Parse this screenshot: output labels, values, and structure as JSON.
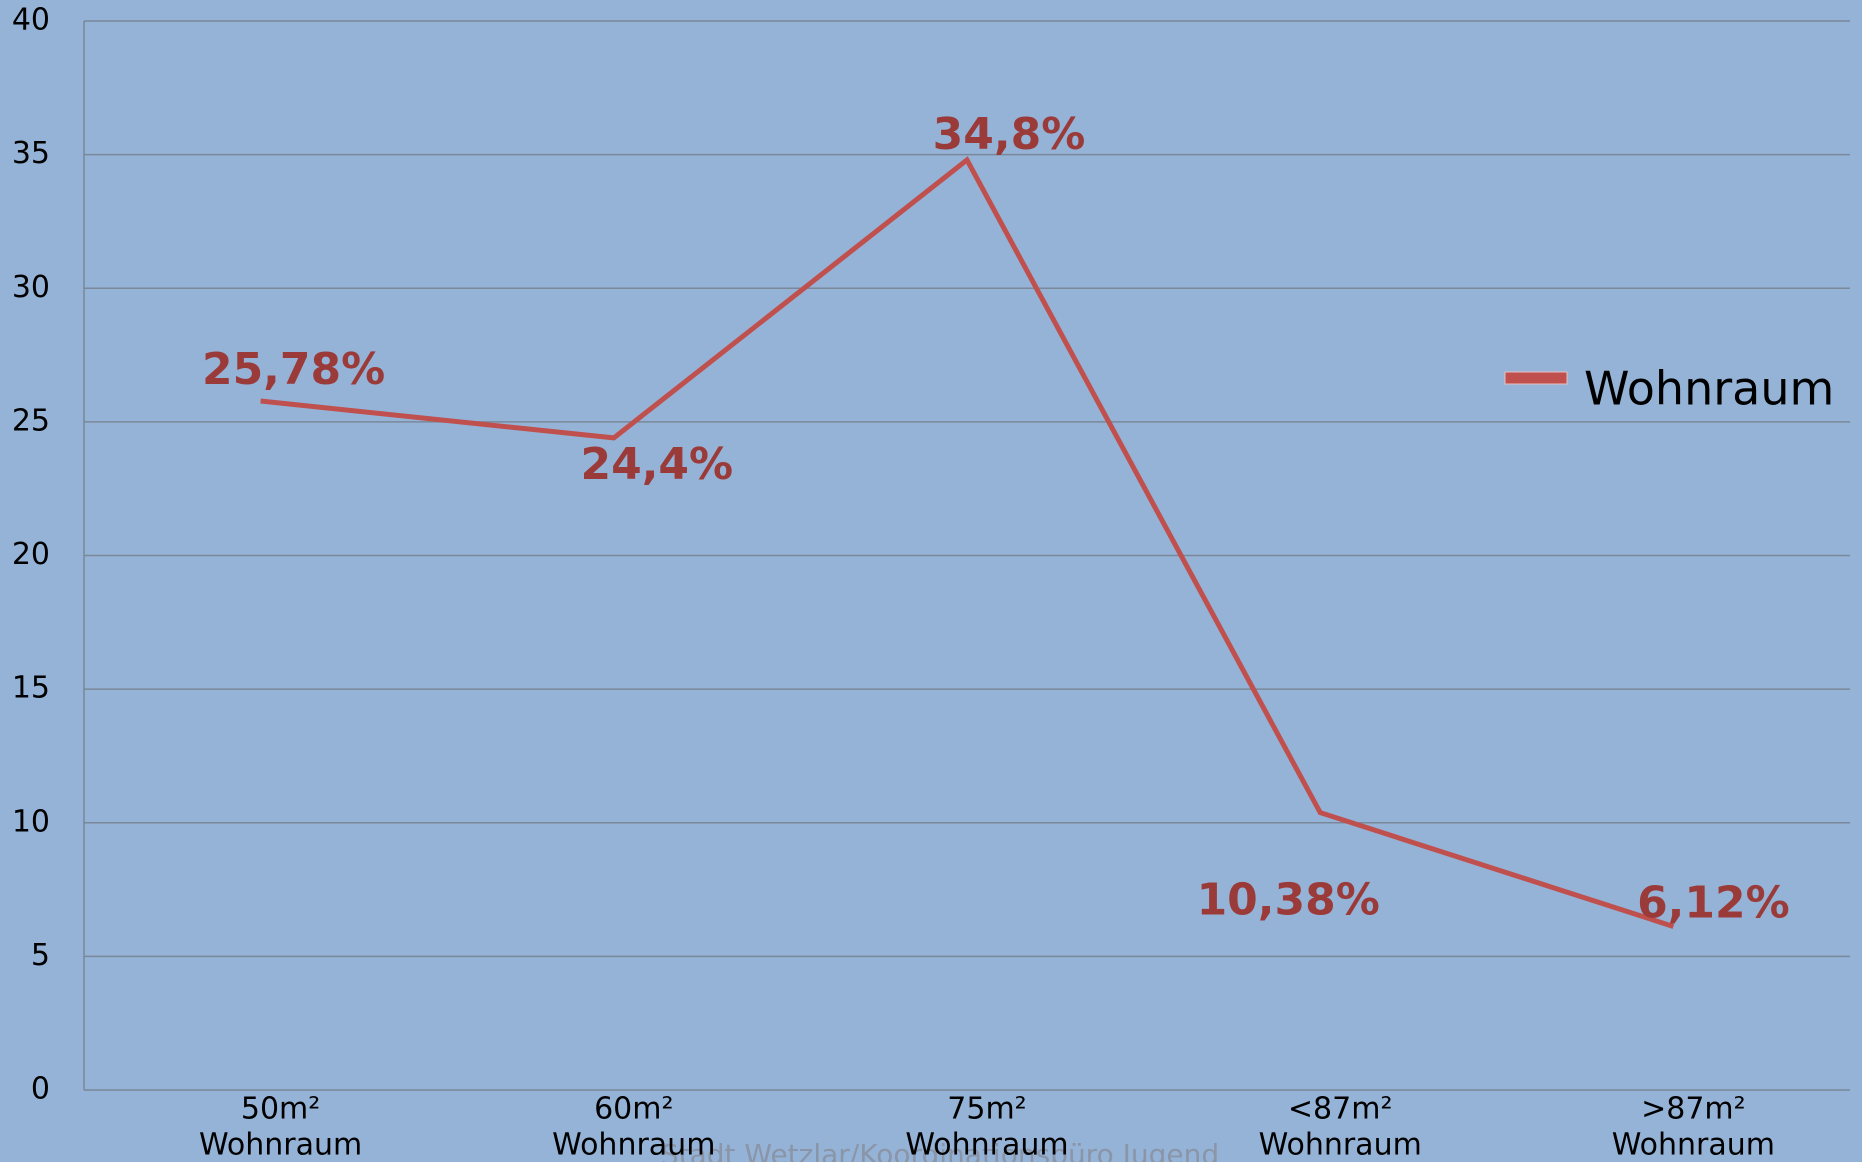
{
  "chart_data": {
    "type": "line",
    "categories": [
      [
        "50m²",
        "Wohnraum"
      ],
      [
        "60m²",
        "Wohnraum"
      ],
      [
        "75m²",
        "Wohnraum"
      ],
      [
        "<87m²",
        "Wohnraum"
      ],
      [
        ">87m²",
        "Wohnraum"
      ]
    ],
    "series": [
      {
        "name": "Wohnraum",
        "color": "#c0504d",
        "values": [
          25.78,
          24.4,
          34.8,
          10.38,
          6.12
        ],
        "value_labels": [
          "25,78%",
          "24,4%",
          "34,8%",
          "10,38%",
          "6,12%"
        ]
      }
    ],
    "ylim": [
      0,
      40
    ],
    "yticks": [
      0,
      5,
      10,
      15,
      20,
      25,
      30,
      35,
      40
    ],
    "grid": true,
    "legend": "right",
    "source": "Stadt Wetzlar/Koordinationsbüro Jugend"
  }
}
